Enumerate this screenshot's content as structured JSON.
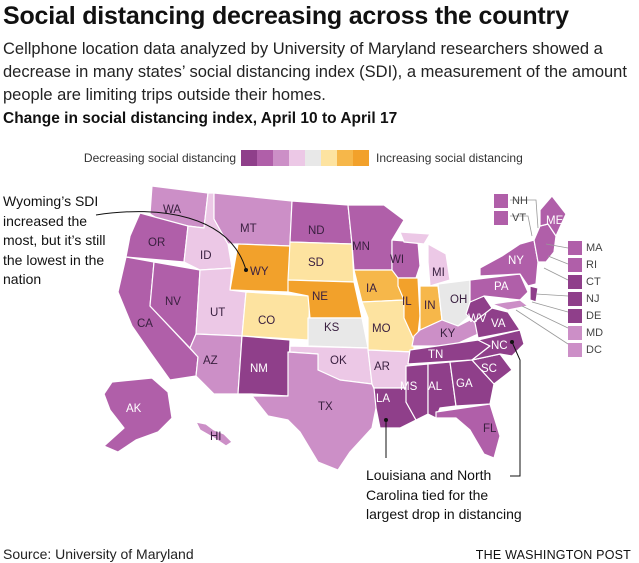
{
  "title": "Social distancing decreasing across the country",
  "subtitle": "Cellphone location data analyzed by University of Maryland researchers showed a decrease in many states’ social distancing index (SDI), a measurement of the amount people are limiting trips outside their homes.",
  "chart_title": "Change in social distancing index, April 10 to April 17",
  "legend": {
    "left_label": "Decreasing social distancing",
    "right_label": "Increasing social distancing",
    "colors": [
      "#8f3f8a",
      "#b05fa9",
      "#cc8fc7",
      "#ecc8e6",
      "#e8e8e8",
      "#fde3a0",
      "#f6b74a",
      "#f2a12b"
    ]
  },
  "colors": {
    "dark_purple": "#8f3f8a",
    "mid_purple": "#b05fa9",
    "light_purple": "#cc8fc7",
    "pale_purple": "#ecc8e6",
    "gray": "#e8e8e8",
    "pale_orange": "#fde3a0",
    "mid_orange": "#f6b74a",
    "dark_orange": "#f2a12b"
  },
  "states": {
    "WA": "WA",
    "OR": "OR",
    "CA": "CA",
    "NV": "NV",
    "ID": "ID",
    "MT": "MT",
    "WY": "WY",
    "UT": "UT",
    "AZ": "AZ",
    "CO": "CO",
    "NM": "NM",
    "ND": "ND",
    "SD": "SD",
    "NE": "NE",
    "KS": "KS",
    "OK": "OK",
    "TX": "TX",
    "MN": "MN",
    "IA": "IA",
    "MO": "MO",
    "AR": "AR",
    "LA": "LA",
    "WI": "WI",
    "IL": "IL",
    "MI": "MI",
    "IN": "IN",
    "OH": "OH",
    "KY": "KY",
    "TN": "TN",
    "MS": "MS",
    "AL": "AL",
    "GA": "GA",
    "FL": "FL",
    "SC": "SC",
    "NC": "NC",
    "VA": "VA",
    "WV": "WV",
    "PA": "PA",
    "NY": "NY",
    "ME": "ME",
    "AK": "AK",
    "HI": "HI"
  },
  "ne_states": [
    "NH",
    "VT"
  ],
  "small_states": [
    "MA",
    "RI",
    "CT",
    "NJ",
    "DE",
    "MD",
    "DC"
  ],
  "annotations": {
    "wyoming": "Wyoming’s SDI increased the most, but it’s still the lowest in the nation",
    "louisiana": "Louisiana and North Carolina tied for the largest drop in distancing"
  },
  "source": "Source: University of Maryland",
  "brand": "THE WASHINGTON POST"
}
